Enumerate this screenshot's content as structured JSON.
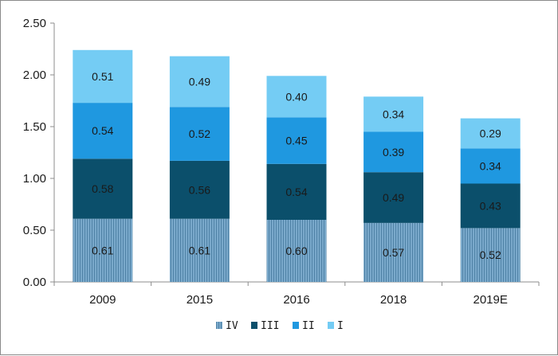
{
  "chart_data": {
    "type": "bar",
    "stacked": true,
    "title": "",
    "xlabel": "",
    "ylabel": "",
    "categories": [
      "2009",
      "2015",
      "2016",
      "2018",
      "2019E"
    ],
    "ylim": [
      0,
      2.5
    ],
    "yticks": [
      "0.00",
      "0.50",
      "1.00",
      "1.50",
      "2.00",
      "2.50"
    ],
    "grid": false,
    "legend_position": "bottom",
    "series": [
      {
        "name": "IV",
        "values": [
          "0.61",
          "0.61",
          "0.60",
          "0.57",
          "0.52"
        ],
        "color": "#5a8fb4",
        "pattern": "vertical-stripes"
      },
      {
        "name": "III",
        "values": [
          "0.58",
          "0.56",
          "0.54",
          "0.49",
          "0.43"
        ],
        "color": "#0b4f6b"
      },
      {
        "name": "II",
        "values": [
          "0.54",
          "0.52",
          "0.45",
          "0.39",
          "0.34"
        ],
        "color": "#1f98e0"
      },
      {
        "name": "I",
        "values": [
          "0.51",
          "0.49",
          "0.40",
          "0.34",
          "0.29"
        ],
        "color": "#74ccf4"
      }
    ]
  }
}
